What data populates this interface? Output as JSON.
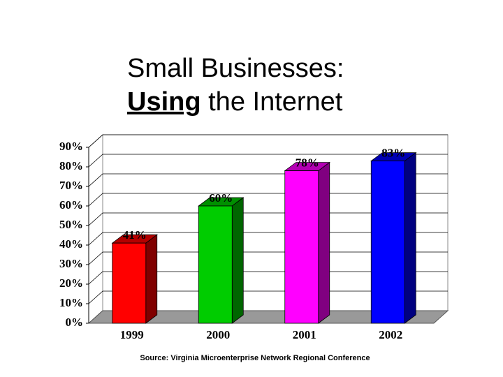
{
  "chart_data": {
    "type": "bar3d",
    "title_line1": "Small Businesses:",
    "title_emphasis": "Using",
    "title_rest": "the Internet",
    "categories": [
      "1999",
      "2000",
      "2001",
      "2002"
    ],
    "values": [
      41,
      60,
      78,
      83
    ],
    "value_labels": [
      "41%",
      "60%",
      "78%",
      "83%"
    ],
    "colors": [
      "#ff0000",
      "#00cc00",
      "#ff00ff",
      "#0000ff"
    ],
    "ylim": [
      0,
      90
    ],
    "yticks": [
      {
        "value": 0,
        "label": "0%"
      },
      {
        "value": 10,
        "label": "10%"
      },
      {
        "value": 20,
        "label": "20%"
      },
      {
        "value": 30,
        "label": "30%"
      },
      {
        "value": 40,
        "label": "40%"
      },
      {
        "value": 50,
        "label": "50%"
      },
      {
        "value": 60,
        "label": "60%"
      },
      {
        "value": 70,
        "label": "70%"
      },
      {
        "value": 80,
        "label": "80%"
      },
      {
        "value": 90,
        "label": "90%"
      }
    ],
    "grid": true,
    "source": "Source: Virginia Microenterprise Network Regional Conference"
  }
}
